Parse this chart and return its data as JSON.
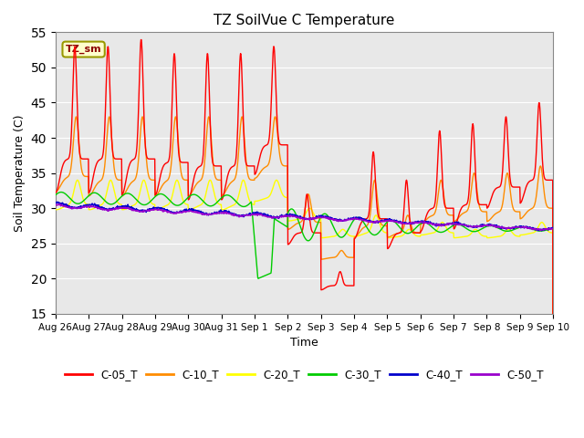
{
  "title": "TZ SoilVue C Temperature",
  "xlabel": "Time",
  "ylabel": "Soil Temperature (C)",
  "ylim": [
    15,
    55
  ],
  "yticks": [
    15,
    20,
    25,
    30,
    35,
    40,
    45,
    50,
    55
  ],
  "legend_label": "TZ_sm",
  "bg_color": "#e8e8e8",
  "line_colors": {
    "C-05_T": "#ff0000",
    "C-10_T": "#ff8c00",
    "C-20_T": "#ffff00",
    "C-30_T": "#00cc00",
    "C-40_T": "#0000cc",
    "C-50_T": "#9900cc"
  },
  "x_tick_labels": [
    "Aug 26",
    "Aug 27",
    "Aug 28",
    "Aug 29",
    "Aug 30",
    "Aug 31",
    "Sep 1",
    "Sep 2",
    "Sep 3",
    "Sep 4",
    "Sep 5",
    "Sep 6",
    "Sep 7",
    "Sep 8",
    "Sep 9",
    "Sep 10"
  ],
  "annotation_box_color": "#ffffcc",
  "annotation_text_color": "#8b0000",
  "annotation_border_color": "#999900"
}
